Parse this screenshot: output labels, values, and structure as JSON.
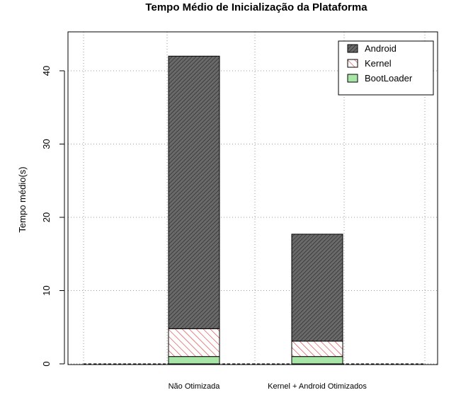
{
  "chart_data": {
    "type": "bar",
    "stacked": true,
    "title": "Tempo Médio de Inicialização da Plataforma",
    "xlabel": "",
    "ylabel": "Tempo médio(s)",
    "categories": [
      "Não Otimizada",
      "Kernel + Android Otimizados"
    ],
    "ylim": [
      0,
      45
    ],
    "yticks": [
      0,
      10,
      20,
      30,
      40
    ],
    "grid": true,
    "legend_position": "top-right",
    "series": [
      {
        "name": "BootLoader",
        "values": [
          1.0,
          1.0
        ],
        "color": "#a8e6a8",
        "pattern": "none"
      },
      {
        "name": "Kernel",
        "values": [
          3.8,
          2.1
        ],
        "color": "#e03030",
        "pattern": "hatch"
      },
      {
        "name": "Android",
        "values": [
          37.2,
          14.6
        ],
        "color": "#555555",
        "pattern": "hatch"
      }
    ],
    "legend_order": [
      "Android",
      "Kernel",
      "BootLoader"
    ]
  }
}
